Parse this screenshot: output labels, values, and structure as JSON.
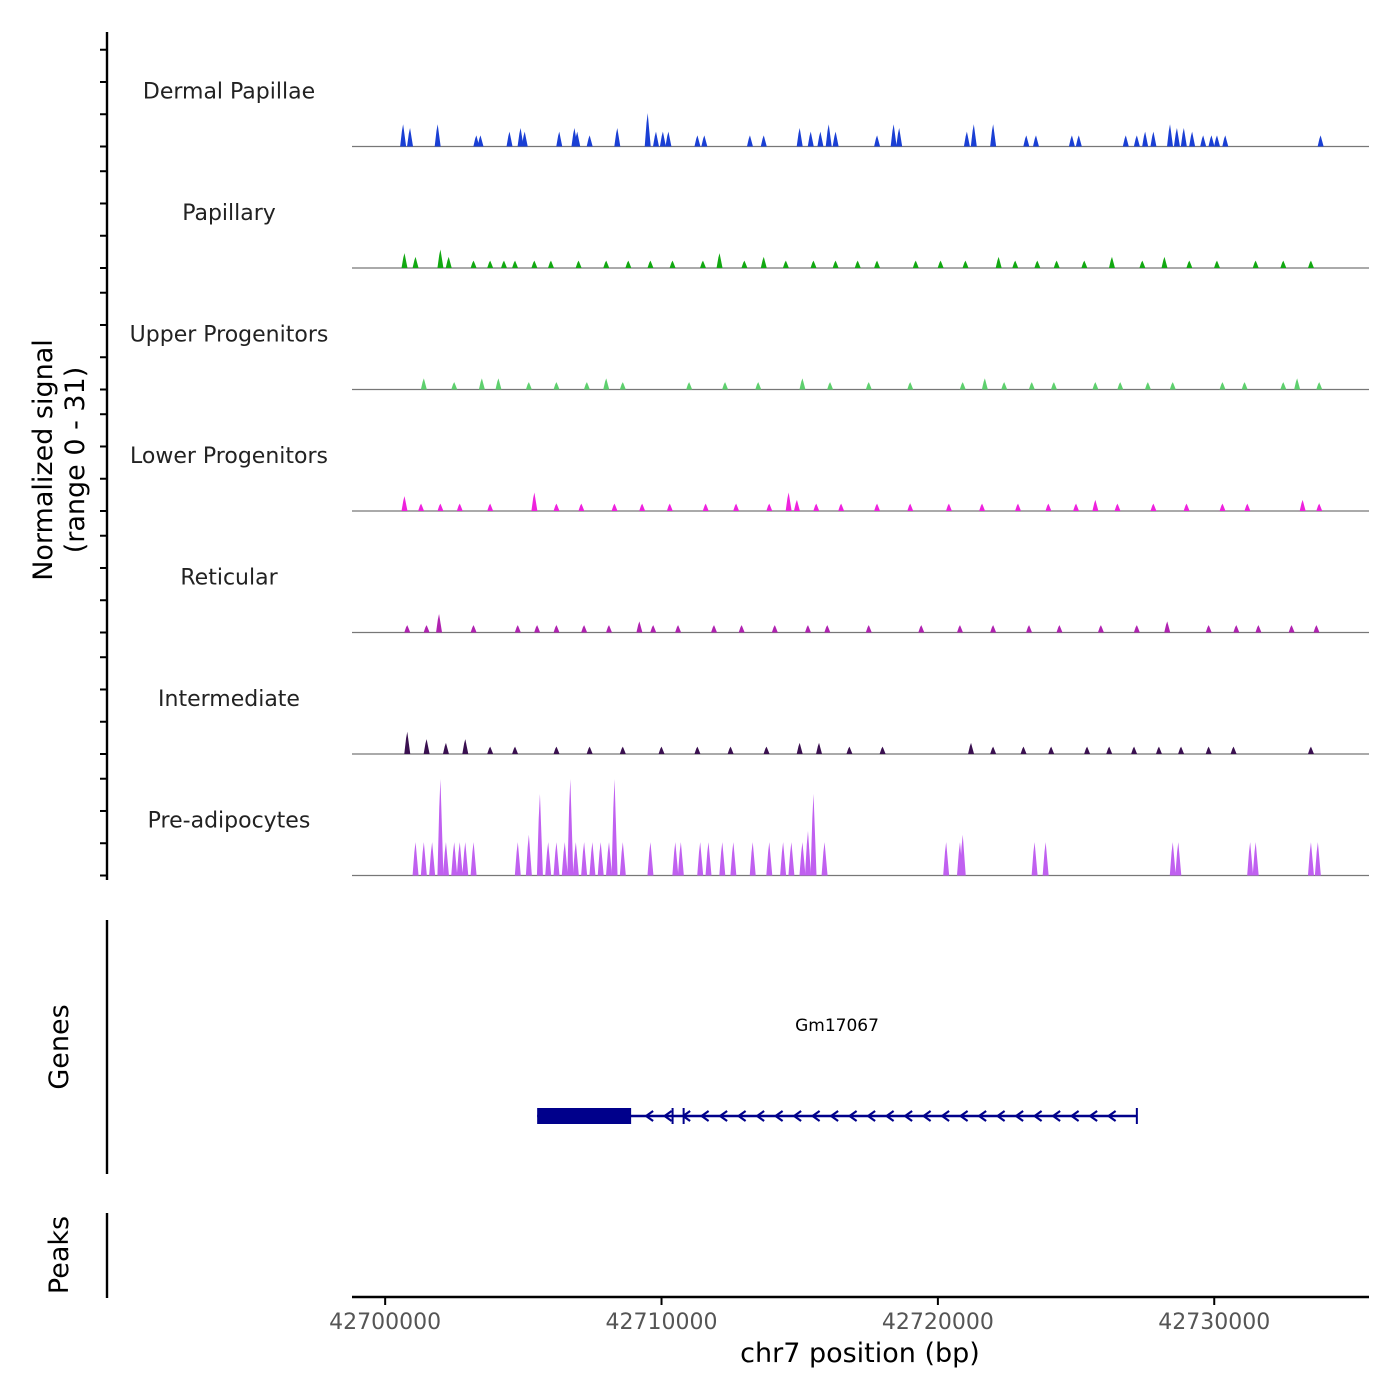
{
  "chart_data": {
    "type": "area",
    "chromosome": "chr7",
    "xlabel": "chr7 position (bp)",
    "xlim": [
      42698800,
      42735600
    ],
    "xticks": [
      42700000,
      42710000,
      42720000,
      42730000
    ],
    "xtick_labels": [
      "42700000",
      "42710000",
      "42720000",
      "42730000"
    ],
    "ylabel_line1": "Normalized signal",
    "ylabel_line2": "(range 0 - 31)",
    "y_range": [
      0,
      31
    ],
    "tracks": [
      {
        "name": "Dermal Papillae",
        "color": "#1a3fd4",
        "peaks": [
          [
            42700650,
            6
          ],
          [
            42700900,
            5
          ],
          [
            42701900,
            6
          ],
          [
            42703300,
            3
          ],
          [
            42703450,
            3
          ],
          [
            42704500,
            4
          ],
          [
            42704900,
            5
          ],
          [
            42705050,
            4
          ],
          [
            42706300,
            4
          ],
          [
            42706850,
            5
          ],
          [
            42706950,
            4
          ],
          [
            42707400,
            3
          ],
          [
            42708400,
            5
          ],
          [
            42709500,
            9
          ],
          [
            42709800,
            4
          ],
          [
            42710050,
            4
          ],
          [
            42710250,
            4
          ],
          [
            42711300,
            3
          ],
          [
            42711550,
            3
          ],
          [
            42713200,
            3
          ],
          [
            42713700,
            3
          ],
          [
            42715000,
            5
          ],
          [
            42715400,
            4
          ],
          [
            42715750,
            4
          ],
          [
            42716050,
            6
          ],
          [
            42716300,
            4
          ],
          [
            42717800,
            3
          ],
          [
            42718400,
            6
          ],
          [
            42718600,
            5
          ],
          [
            42721050,
            4
          ],
          [
            42721300,
            6
          ],
          [
            42722000,
            6
          ],
          [
            42723200,
            3
          ],
          [
            42723550,
            3
          ],
          [
            42724850,
            3
          ],
          [
            42725100,
            3
          ],
          [
            42726800,
            3
          ],
          [
            42727200,
            3
          ],
          [
            42727500,
            4
          ],
          [
            42727800,
            4
          ],
          [
            42728400,
            6
          ],
          [
            42728650,
            5
          ],
          [
            42728900,
            5
          ],
          [
            42729200,
            4
          ],
          [
            42729600,
            3
          ],
          [
            42729900,
            3
          ],
          [
            42730100,
            3
          ],
          [
            42730400,
            3
          ],
          [
            42733850,
            3
          ]
        ]
      },
      {
        "name": "Papillary",
        "color": "#12a812",
        "peaks": [
          [
            42700700,
            4
          ],
          [
            42701100,
            3
          ],
          [
            42702000,
            5
          ],
          [
            42702300,
            3
          ],
          [
            42703200,
            2
          ],
          [
            42703800,
            2
          ],
          [
            42704300,
            2
          ],
          [
            42704700,
            2
          ],
          [
            42705400,
            2
          ],
          [
            42706000,
            2
          ],
          [
            42707000,
            2
          ],
          [
            42708000,
            2
          ],
          [
            42708800,
            2
          ],
          [
            42709600,
            2
          ],
          [
            42710400,
            2
          ],
          [
            42711500,
            2
          ],
          [
            42712100,
            4
          ],
          [
            42713000,
            2
          ],
          [
            42713700,
            3
          ],
          [
            42714500,
            2
          ],
          [
            42715500,
            2
          ],
          [
            42716300,
            2
          ],
          [
            42717100,
            2
          ],
          [
            42717800,
            2
          ],
          [
            42719200,
            2
          ],
          [
            42720100,
            2
          ],
          [
            42721000,
            2
          ],
          [
            42722200,
            3
          ],
          [
            42722800,
            2
          ],
          [
            42723600,
            2
          ],
          [
            42724300,
            2
          ],
          [
            42725300,
            2
          ],
          [
            42726300,
            3
          ],
          [
            42727400,
            2
          ],
          [
            42728200,
            3
          ],
          [
            42729100,
            2
          ],
          [
            42730100,
            2
          ],
          [
            42731500,
            2
          ],
          [
            42732500,
            2
          ],
          [
            42733500,
            2
          ]
        ]
      },
      {
        "name": "Upper Progenitors",
        "color": "#5ed06e",
        "peaks": [
          [
            42701400,
            3
          ],
          [
            42702500,
            2
          ],
          [
            42703500,
            3
          ],
          [
            42704100,
            3
          ],
          [
            42705200,
            2
          ],
          [
            42706200,
            2
          ],
          [
            42707300,
            2
          ],
          [
            42708000,
            3
          ],
          [
            42708600,
            2
          ],
          [
            42711000,
            2
          ],
          [
            42712300,
            2
          ],
          [
            42713500,
            2
          ],
          [
            42715100,
            3
          ],
          [
            42716100,
            2
          ],
          [
            42717500,
            2
          ],
          [
            42719000,
            2
          ],
          [
            42720900,
            2
          ],
          [
            42721700,
            3
          ],
          [
            42722400,
            2
          ],
          [
            42723400,
            2
          ],
          [
            42724200,
            2
          ],
          [
            42725700,
            2
          ],
          [
            42726600,
            2
          ],
          [
            42727600,
            2
          ],
          [
            42728500,
            2
          ],
          [
            42730300,
            2
          ],
          [
            42731100,
            2
          ],
          [
            42732500,
            2
          ],
          [
            42733000,
            3
          ],
          [
            42733800,
            2
          ]
        ]
      },
      {
        "name": "Lower Progenitors",
        "color": "#ee22dd",
        "peaks": [
          [
            42700700,
            4
          ],
          [
            42701300,
            2
          ],
          [
            42702000,
            2
          ],
          [
            42702700,
            2
          ],
          [
            42703800,
            2
          ],
          [
            42705400,
            5
          ],
          [
            42706200,
            2
          ],
          [
            42707100,
            2
          ],
          [
            42708300,
            2
          ],
          [
            42709300,
            2
          ],
          [
            42710300,
            2
          ],
          [
            42711600,
            2
          ],
          [
            42712700,
            2
          ],
          [
            42713900,
            2
          ],
          [
            42714600,
            5
          ],
          [
            42714900,
            3
          ],
          [
            42715600,
            2
          ],
          [
            42716500,
            2
          ],
          [
            42717800,
            2
          ],
          [
            42719000,
            2
          ],
          [
            42720400,
            2
          ],
          [
            42721600,
            2
          ],
          [
            42722900,
            2
          ],
          [
            42724000,
            2
          ],
          [
            42725000,
            2
          ],
          [
            42725700,
            3
          ],
          [
            42726500,
            2
          ],
          [
            42727800,
            2
          ],
          [
            42729000,
            2
          ],
          [
            42730300,
            2
          ],
          [
            42731200,
            2
          ],
          [
            42733200,
            3
          ],
          [
            42733800,
            2
          ]
        ]
      },
      {
        "name": "Reticular",
        "color": "#b022b0",
        "peaks": [
          [
            42700800,
            2
          ],
          [
            42701500,
            2
          ],
          [
            42701950,
            5
          ],
          [
            42703200,
            2
          ],
          [
            42704800,
            2
          ],
          [
            42705500,
            2
          ],
          [
            42706200,
            2
          ],
          [
            42707200,
            2
          ],
          [
            42708100,
            2
          ],
          [
            42709200,
            3
          ],
          [
            42709700,
            2
          ],
          [
            42710600,
            2
          ],
          [
            42711900,
            2
          ],
          [
            42712900,
            2
          ],
          [
            42714100,
            2
          ],
          [
            42715300,
            2
          ],
          [
            42716000,
            2
          ],
          [
            42717500,
            2
          ],
          [
            42719400,
            2
          ],
          [
            42720800,
            2
          ],
          [
            42722000,
            2
          ],
          [
            42723300,
            2
          ],
          [
            42724400,
            2
          ],
          [
            42725900,
            2
          ],
          [
            42727200,
            2
          ],
          [
            42728300,
            3
          ],
          [
            42729800,
            2
          ],
          [
            42730800,
            2
          ],
          [
            42731600,
            2
          ],
          [
            42732800,
            2
          ],
          [
            42733700,
            2
          ]
        ]
      },
      {
        "name": "Intermediate",
        "color": "#3a1050",
        "peaks": [
          [
            42700800,
            6
          ],
          [
            42701500,
            4
          ],
          [
            42702200,
            3
          ],
          [
            42702900,
            4
          ],
          [
            42703800,
            2
          ],
          [
            42704700,
            2
          ],
          [
            42706200,
            2
          ],
          [
            42707400,
            2
          ],
          [
            42708600,
            2
          ],
          [
            42710000,
            2
          ],
          [
            42711300,
            2
          ],
          [
            42712500,
            2
          ],
          [
            42713800,
            2
          ],
          [
            42715000,
            3
          ],
          [
            42715700,
            3
          ],
          [
            42716800,
            2
          ],
          [
            42718000,
            2
          ],
          [
            42721200,
            3
          ],
          [
            42722000,
            2
          ],
          [
            42723100,
            2
          ],
          [
            42724100,
            2
          ],
          [
            42725400,
            2
          ],
          [
            42726200,
            2
          ],
          [
            42727100,
            2
          ],
          [
            42728000,
            2
          ],
          [
            42728800,
            2
          ],
          [
            42729800,
            2
          ],
          [
            42730700,
            2
          ],
          [
            42733500,
            2
          ]
        ]
      },
      {
        "name": "Pre-adipocytes",
        "color": "#c060f0",
        "peaks": [
          [
            42701100,
            9
          ],
          [
            42701400,
            9
          ],
          [
            42701700,
            9
          ],
          [
            42702000,
            26
          ],
          [
            42702200,
            9
          ],
          [
            42702500,
            9
          ],
          [
            42702700,
            9
          ],
          [
            42702900,
            9
          ],
          [
            42703200,
            9
          ],
          [
            42704800,
            9
          ],
          [
            42705200,
            11
          ],
          [
            42705600,
            22
          ],
          [
            42705900,
            9
          ],
          [
            42706200,
            9
          ],
          [
            42706500,
            9
          ],
          [
            42706700,
            26
          ],
          [
            42706900,
            9
          ],
          [
            42707200,
            9
          ],
          [
            42707500,
            9
          ],
          [
            42707800,
            9
          ],
          [
            42708100,
            9
          ],
          [
            42708300,
            26
          ],
          [
            42708600,
            9
          ],
          [
            42709600,
            9
          ],
          [
            42710500,
            9
          ],
          [
            42710700,
            9
          ],
          [
            42711400,
            9
          ],
          [
            42711700,
            9
          ],
          [
            42712200,
            9
          ],
          [
            42712600,
            9
          ],
          [
            42713300,
            9
          ],
          [
            42713900,
            9
          ],
          [
            42714400,
            9
          ],
          [
            42714700,
            9
          ],
          [
            42715100,
            9
          ],
          [
            42715300,
            12
          ],
          [
            42715500,
            22
          ],
          [
            42715900,
            9
          ],
          [
            42720300,
            9
          ],
          [
            42720800,
            9
          ],
          [
            42720900,
            11
          ],
          [
            42723500,
            9
          ],
          [
            42723900,
            9
          ],
          [
            42728500,
            9
          ],
          [
            42728700,
            9
          ],
          [
            42731300,
            9
          ],
          [
            42731500,
            9
          ],
          [
            42733500,
            9
          ],
          [
            42733750,
            9
          ]
        ]
      }
    ],
    "genes": {
      "title": "Genes",
      "items": [
        {
          "name": "Gm17067",
          "start": 42705500,
          "end": 42727200,
          "strand": "-",
          "thick_start": 42705500,
          "thick_end": 42708900,
          "exon_marks": [
            42710400,
            42710800
          ]
        }
      ]
    },
    "peaks_panel": {
      "title": "Peaks"
    }
  }
}
